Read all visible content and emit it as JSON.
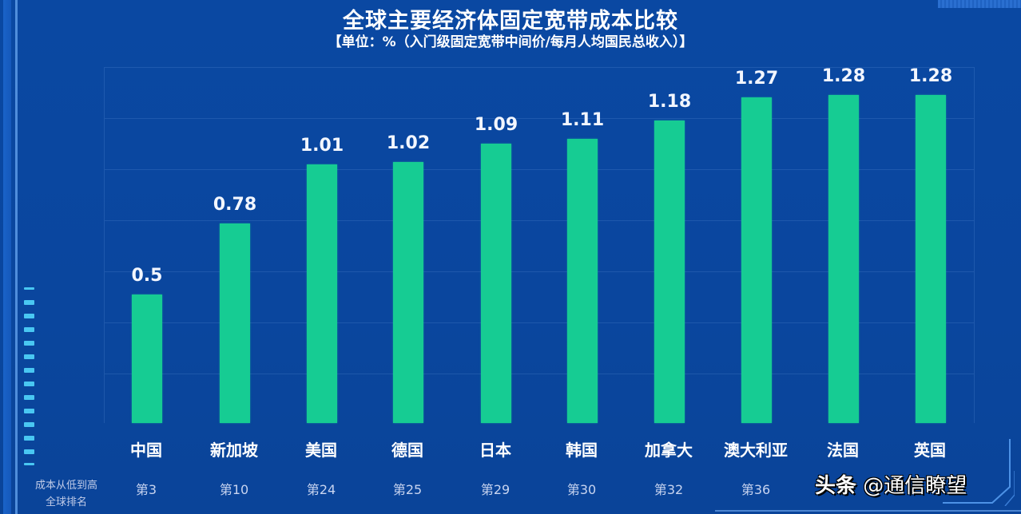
{
  "header": {
    "title": "全球主要经济体固定宽带成本比较",
    "subtitle": "【单位：%（入门级固定宽带中间价/每月人均国民总收入）】"
  },
  "side_note": {
    "line1": "成本从低到高",
    "line2": "全球排名"
  },
  "watermark": {
    "brand": "头条",
    "handle": "@通信瞭望"
  },
  "colors": {
    "background": "#0a47a0",
    "bar": "#16cc93",
    "text": "#ffffff",
    "accent_dash": "#49c7f2"
  },
  "bars": [
    {
      "label": "中国",
      "value": "0.5",
      "rank": "第3"
    },
    {
      "label": "新加坡",
      "value": "0.78",
      "rank": "第10"
    },
    {
      "label": "美国",
      "value": "1.01",
      "rank": "第24"
    },
    {
      "label": "德国",
      "value": "1.02",
      "rank": "第25"
    },
    {
      "label": "日本",
      "value": "1.09",
      "rank": "第29"
    },
    {
      "label": "韩国",
      "value": "1.11",
      "rank": "第30"
    },
    {
      "label": "加拿大",
      "value": "1.18",
      "rank": "第32"
    },
    {
      "label": "澳大利亚",
      "value": "1.27",
      "rank": "第36"
    },
    {
      "label": "法国",
      "value": "1.28",
      "rank": ""
    },
    {
      "label": "英国",
      "value": "1.28",
      "rank": ""
    }
  ],
  "chart_data": {
    "type": "bar",
    "title": "全球主要经济体固定宽带成本比较",
    "subtitle": "【单位：%（入门级固定宽带中间价/每月人均国民总收入）】",
    "xlabel": "",
    "ylabel": "%",
    "categories": [
      "中国",
      "新加坡",
      "美国",
      "德国",
      "日本",
      "韩国",
      "加拿大",
      "澳大利亚",
      "法国",
      "英国"
    ],
    "values": [
      0.5,
      0.78,
      1.01,
      1.02,
      1.09,
      1.11,
      1.18,
      1.27,
      1.28,
      1.28
    ],
    "annotations": {
      "row_label": "成本从低到高 全球排名",
      "ranks": [
        "第3",
        "第10",
        "第24",
        "第25",
        "第29",
        "第30",
        "第32",
        "第36",
        null,
        null
      ]
    },
    "ylim": [
      0,
      1.39
    ],
    "grid": true,
    "legend": "none",
    "data_labels": true
  }
}
